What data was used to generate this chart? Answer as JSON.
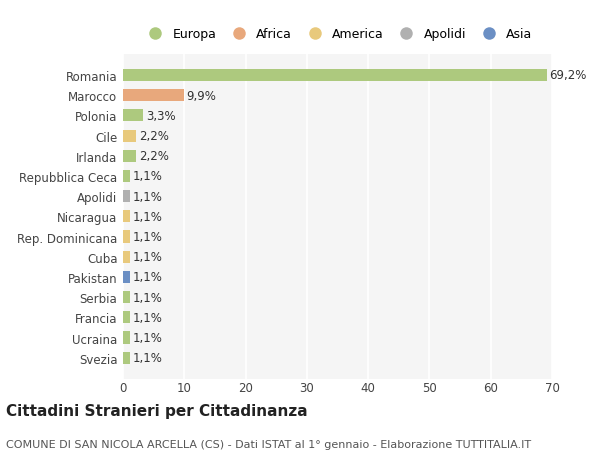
{
  "title": "Cittadini Stranieri per Cittadinanza",
  "subtitle": "COMUNE DI SAN NICOLA ARCELLA (CS) - Dati ISTAT al 1° gennaio - Elaborazione TUTTITALIA.IT",
  "categories": [
    "Romania",
    "Marocco",
    "Polonia",
    "Cile",
    "Irlanda",
    "Repubblica Ceca",
    "Apolidi",
    "Nicaragua",
    "Rep. Dominicana",
    "Cuba",
    "Pakistan",
    "Serbia",
    "Francia",
    "Ucraina",
    "Svezia"
  ],
  "values": [
    69.2,
    9.9,
    3.3,
    2.2,
    2.2,
    1.1,
    1.1,
    1.1,
    1.1,
    1.1,
    1.1,
    1.1,
    1.1,
    1.1,
    1.1
  ],
  "labels": [
    "69,2%",
    "9,9%",
    "3,3%",
    "2,2%",
    "2,2%",
    "1,1%",
    "1,1%",
    "1,1%",
    "1,1%",
    "1,1%",
    "1,1%",
    "1,1%",
    "1,1%",
    "1,1%",
    "1,1%"
  ],
  "colors": [
    "#adc97e",
    "#e8a87c",
    "#adc97e",
    "#e8c97c",
    "#adc97e",
    "#adc97e",
    "#b0b0b0",
    "#e8c97c",
    "#e8c97c",
    "#e8c97c",
    "#6b8fc4",
    "#adc97e",
    "#adc97e",
    "#adc97e",
    "#adc97e"
  ],
  "legend": [
    {
      "label": "Europa",
      "color": "#adc97e"
    },
    {
      "label": "Africa",
      "color": "#e8a87c"
    },
    {
      "label": "America",
      "color": "#e8c97c"
    },
    {
      "label": "Apolidi",
      "color": "#b0b0b0"
    },
    {
      "label": "Asia",
      "color": "#6b8fc4"
    }
  ],
  "xlim": [
    0,
    70
  ],
  "xticks": [
    0,
    10,
    20,
    30,
    40,
    50,
    60,
    70
  ],
  "plot_bg_color": "#f5f5f5",
  "fig_bg_color": "#ffffff",
  "grid_color": "#ffffff",
  "bar_height": 0.6,
  "title_fontsize": 11,
  "subtitle_fontsize": 8,
  "tick_fontsize": 8.5,
  "label_fontsize": 8.5,
  "legend_fontsize": 9
}
